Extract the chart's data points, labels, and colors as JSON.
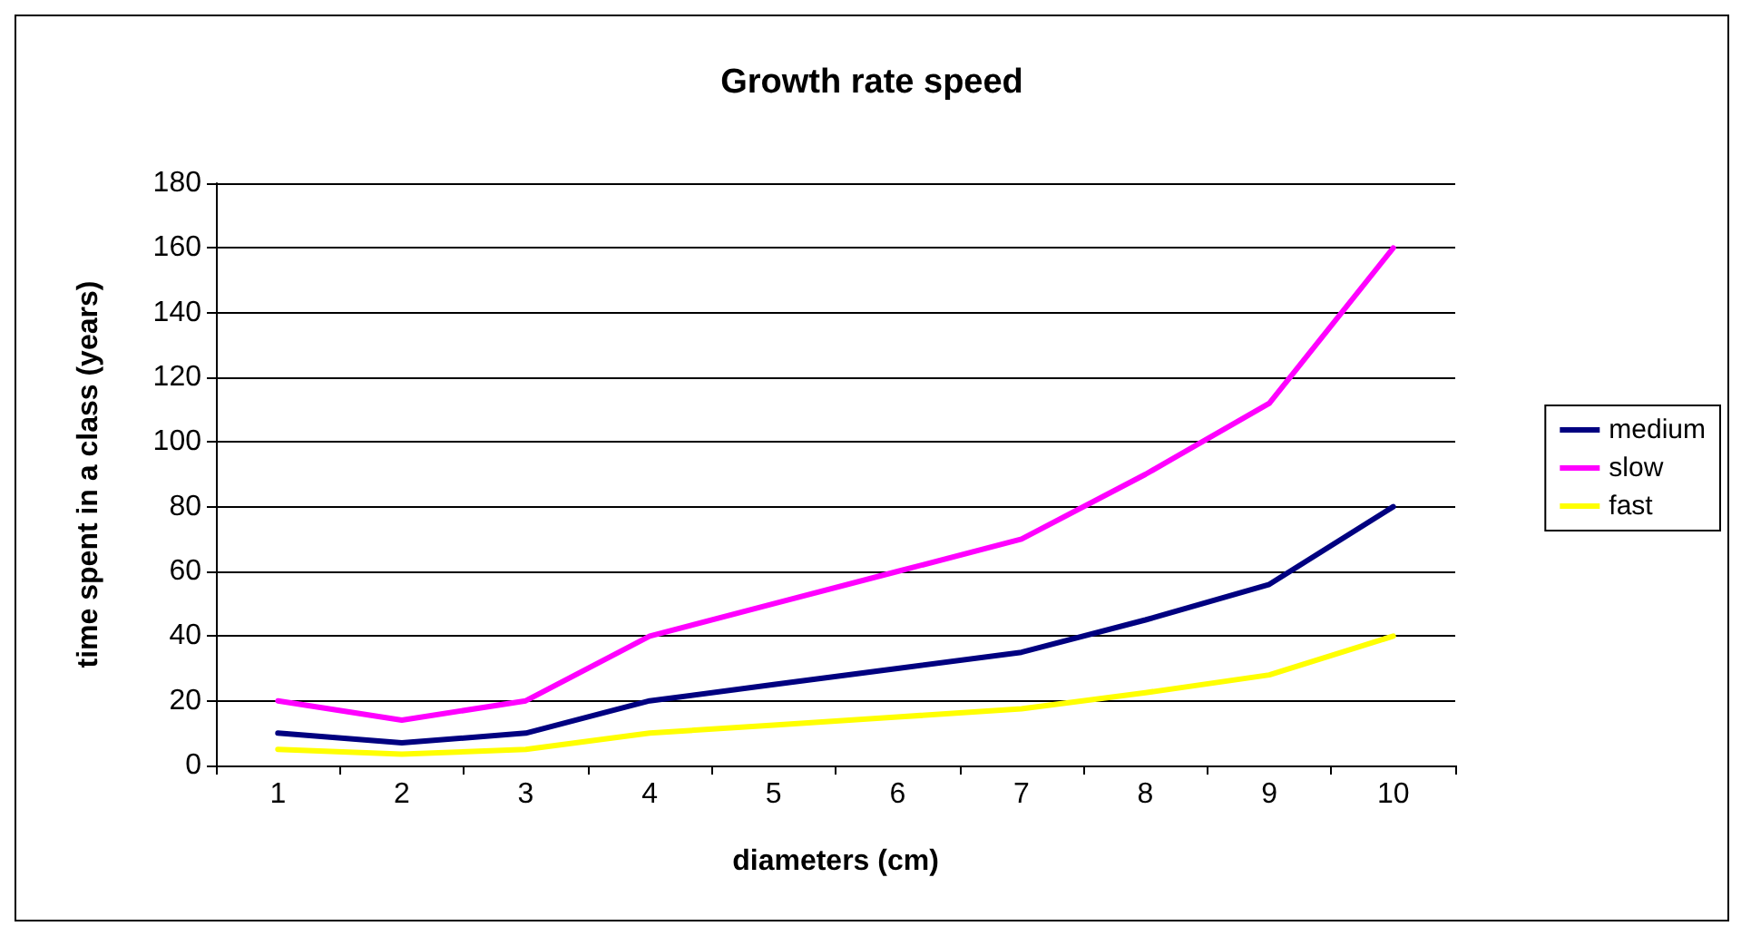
{
  "chart_data": {
    "type": "line",
    "title": "Growth rate speed",
    "xlabel": "diameters (cm)",
    "ylabel": "time spent in a class (years)",
    "categories": [
      "1",
      "2",
      "3",
      "4",
      "5",
      "6",
      "7",
      "8",
      "9",
      "10"
    ],
    "series": [
      {
        "name": "medium",
        "color": "#000080",
        "values": [
          10,
          7,
          10,
          20,
          25,
          30,
          35,
          45,
          56,
          80
        ]
      },
      {
        "name": "slow",
        "color": "#ff00ff",
        "values": [
          20,
          14,
          20,
          40,
          50,
          60,
          70,
          90,
          112,
          160
        ]
      },
      {
        "name": "fast",
        "color": "#ffff00",
        "values": [
          5,
          3.5,
          5,
          10,
          12.5,
          15,
          17.5,
          22.5,
          28,
          40
        ]
      }
    ],
    "ylim": [
      0,
      180
    ],
    "yticks": [
      0,
      20,
      40,
      60,
      80,
      100,
      120,
      140,
      160,
      180
    ],
    "grid": "y",
    "legend": "right",
    "marker": "none",
    "line_style": "solid"
  }
}
